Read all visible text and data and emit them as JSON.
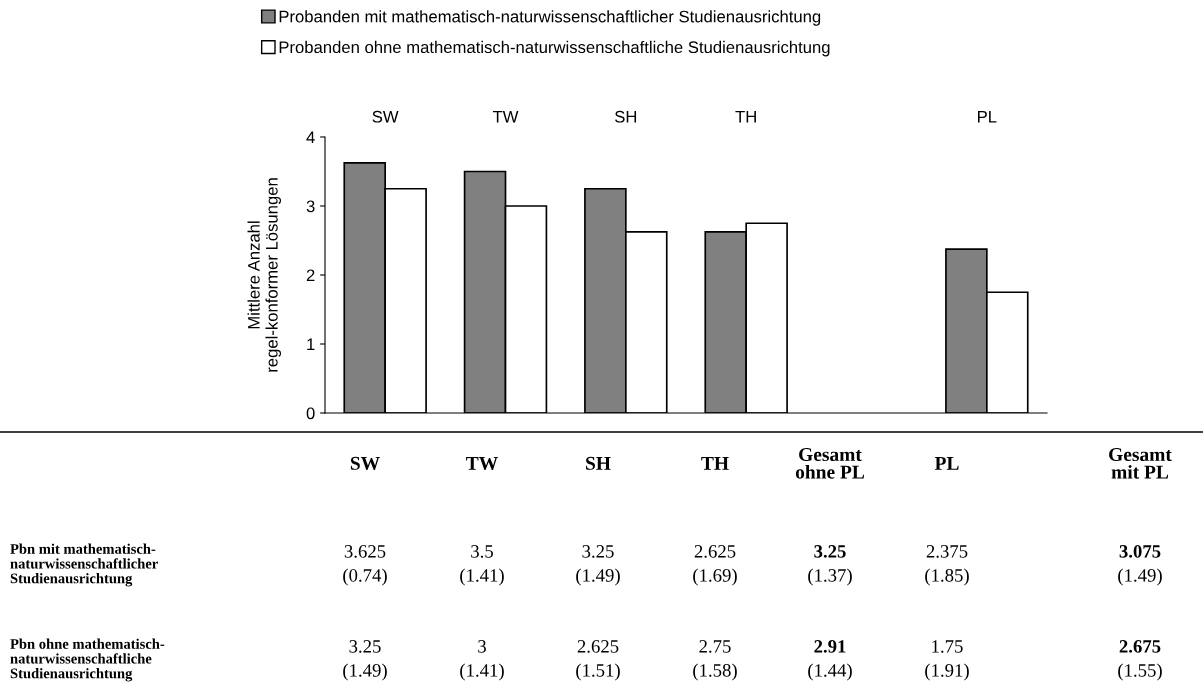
{
  "chart_data": [
    {
      "type": "bar",
      "categories": [
        "SW",
        "TW",
        "SH",
        "TH",
        null,
        "PL"
      ],
      "ylabel": "Mittlere Anzahl\nregel-konformer Lösungen",
      "ylim": [
        0,
        4
      ],
      "yticks": [
        0,
        1,
        2,
        3,
        4
      ],
      "legend": "top",
      "grid": false,
      "series": [
        {
          "name": "Probanden mit mathematisch-naturwissenschaftlicher Studienausrichtung",
          "color": "#808080",
          "values": [
            3.625,
            3.5,
            3.25,
            2.625,
            null,
            2.375
          ]
        },
        {
          "name": "Probanden ohne mathematisch-naturwissenschaftliche Studienausrichtung",
          "color": "#ffffff",
          "values": [
            3.25,
            3,
            2.625,
            2.75,
            null,
            1.75
          ]
        }
      ]
    },
    {
      "type": "other",
      "categories": [
        "SW",
        "TW",
        "SH",
        "TH",
        "Gesamt\nohne PL",
        "PL",
        "Gesamt\nmit PL"
      ],
      "y_categories": [
        "Pbn mit mathematisch-\nnaturwissenschaftlicher\nStudienausrichtung",
        "Pbn ohne mathematisch-\nnaturwissenschaftliche\nStudienausrichtung"
      ],
      "cell_labels": [
        [
          "3.625\n(0.74)",
          "3.5\n(1.41)",
          "3.25\n(1.49)",
          "2.625\n(1.69)",
          "3.25\n(1.37)",
          "2.375\n(1.85)",
          "3.075\n(1.49)"
        ],
        [
          "3.25\n(1.49)",
          "3\n(1.41)",
          "2.625\n(1.51)",
          "2.75\n(1.58)",
          "2.91\n(1.44)",
          "1.75\n(1.91)",
          "2.675\n(1.55)"
        ]
      ]
    }
  ]
}
